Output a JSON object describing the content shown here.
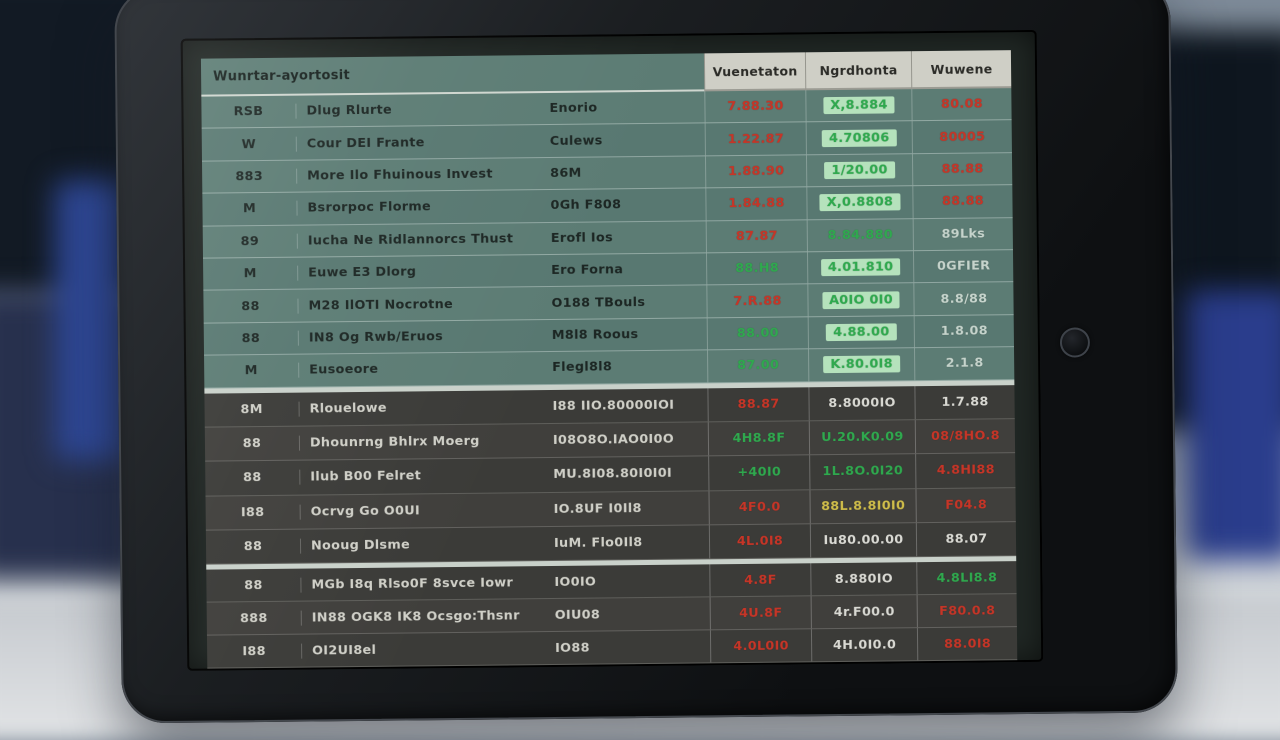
{
  "colors": {
    "red": "#c63527",
    "green": "#2fa94e",
    "light": "#c6d4cc",
    "white": "#d9d9d3",
    "yellow": "#cfbd4a",
    "highlight_bg": "#b5e2bc"
  },
  "table": {
    "header": {
      "title": "Wunrtar-ayortosit",
      "columns": [
        "Vuenetaton",
        "Ngrdhonta",
        "Wuwene"
      ]
    },
    "sections": [
      {
        "style": "teal",
        "rows": [
          {
            "code": "RSB",
            "name": "Dlug Rlurte",
            "symbol": "Enorio",
            "price": {
              "text": "7.88.30",
              "color": "red"
            },
            "change": {
              "text": "X,8.884",
              "color": "green",
              "highlight": true
            },
            "value": {
              "text": "80.08",
              "color": "red"
            }
          },
          {
            "code": "W",
            "name": "Cour DEI Frante",
            "symbol": "Culews",
            "price": {
              "text": "1.22.87",
              "color": "red"
            },
            "change": {
              "text": "4.70806",
              "color": "green",
              "highlight": true
            },
            "value": {
              "text": "80005",
              "color": "red"
            }
          },
          {
            "code": "883",
            "name": "More Ilo Fhuinous Invest",
            "symbol": "86M",
            "price": {
              "text": "1.88.90",
              "color": "red"
            },
            "change": {
              "text": "1/20.00",
              "color": "green",
              "highlight": true
            },
            "value": {
              "text": "88.88",
              "color": "red"
            }
          },
          {
            "code": "M",
            "name": "Bsrorpoc Florme",
            "symbol": "0Gh F808",
            "price": {
              "text": "1.84.88",
              "color": "red"
            },
            "change": {
              "text": "X,0.8808",
              "color": "green",
              "highlight": true
            },
            "value": {
              "text": "88.88",
              "color": "red"
            }
          },
          {
            "code": "89",
            "name": "Iucha Ne Ridlannorcs Thust",
            "symbol": "Erofl Ios",
            "price": {
              "text": "87.87",
              "color": "red"
            },
            "change": {
              "text": "8.84.880",
              "color": "green",
              "highlight": false
            },
            "value": {
              "text": "89Lks",
              "color": "light"
            }
          },
          {
            "code": "M",
            "name": "Euwe E3 Dlorg",
            "symbol": "Ero Forna",
            "price": {
              "text": "88.H8",
              "color": "green"
            },
            "change": {
              "text": "4.01.810",
              "color": "green",
              "highlight": true
            },
            "value": {
              "text": "0GFIER",
              "color": "light"
            }
          },
          {
            "code": "88",
            "name": "M28 IlOTI Nocrotne",
            "symbol": "O188 TBouls",
            "price": {
              "text": "7.R.88",
              "color": "red"
            },
            "change": {
              "text": "A0IO 0I0",
              "color": "green",
              "highlight": true
            },
            "value": {
              "text": "8.8/88",
              "color": "light"
            }
          },
          {
            "code": "88",
            "name": "IN8 Og Rwb/Eruos",
            "symbol": "M8l8 Roous",
            "price": {
              "text": "88.00",
              "color": "green"
            },
            "change": {
              "text": "4.88.00",
              "color": "green",
              "highlight": true
            },
            "value": {
              "text": "1.8.08",
              "color": "light"
            }
          },
          {
            "code": "M",
            "name": "Eusoeore",
            "symbol": "Flegl8l8",
            "price": {
              "text": "87.00",
              "color": "green"
            },
            "change": {
              "text": "K.80.0I8",
              "color": "green",
              "highlight": true
            },
            "value": {
              "text": "2.1.8",
              "color": "light"
            }
          }
        ]
      },
      {
        "style": "dark",
        "rows": [
          {
            "code": "8M",
            "name": "Rlouelowe",
            "symbol": "I88 IIO.80000IOI",
            "price": {
              "text": "88.87",
              "color": "red"
            },
            "change": {
              "text": "8.8000IO",
              "color": "white"
            },
            "value": {
              "text": "1.7.88",
              "color": "white"
            }
          },
          {
            "code": "88",
            "name": "Dhounrng Bhlrx Moerg",
            "symbol": "I08O8O.IAO0I0O",
            "price": {
              "text": "4H8.8F",
              "color": "green"
            },
            "change": {
              "text": "U.20.K0.09",
              "color": "green"
            },
            "value": {
              "text": "08/8HO.8",
              "color": "red"
            }
          },
          {
            "code": "88",
            "name": "Ilub B00 Felret",
            "symbol": "MU.8I08.80I0I0I",
            "price": {
              "text": "+40I0",
              "color": "green"
            },
            "change": {
              "text": "1L.8O.0I20",
              "color": "green"
            },
            "value": {
              "text": "4.8HI88",
              "color": "red"
            }
          },
          {
            "code": "I88",
            "name": "Ocrvg Go O0UI",
            "symbol": "IO.8UF I0Il8",
            "price": {
              "text": "4F0.0",
              "color": "red"
            },
            "change": {
              "text": "88L.8.8I0I0",
              "color": "yellow"
            },
            "value": {
              "text": "F04.8",
              "color": "red"
            }
          },
          {
            "code": "88",
            "name": "Nooug Dlsme",
            "symbol": "IuM. Flo0Il8",
            "price": {
              "text": "4L.0I8",
              "color": "red"
            },
            "change": {
              "text": "Iu80.00.00",
              "color": "white"
            },
            "value": {
              "text": "88.07",
              "color": "white"
            }
          }
        ]
      },
      {
        "style": "dark",
        "rows": [
          {
            "code": "88",
            "name": "MGb I8q Rlso0F 8svce Iowr",
            "symbol": "IO0IO",
            "price": {
              "text": "4.8F",
              "color": "red"
            },
            "change": {
              "text": "8.880IO",
              "color": "white"
            },
            "value": {
              "text": "4.8LI8.8",
              "color": "green"
            }
          },
          {
            "code": "888",
            "name": "IN88 OGK8 IK8 Ocsgo:Thsnr",
            "symbol": "OIU08",
            "price": {
              "text": "4U.8F",
              "color": "red"
            },
            "change": {
              "text": "4r.F00.0",
              "color": "white"
            },
            "value": {
              "text": "F80.0.8",
              "color": "red"
            }
          },
          {
            "code": "I88",
            "name": "OI2UI8el",
            "symbol": "IO88",
            "price": {
              "text": "4.0L0I0",
              "color": "red"
            },
            "change": {
              "text": "4H.0I0.0",
              "color": "white"
            },
            "value": {
              "text": "88.0I8",
              "color": "red"
            }
          }
        ]
      }
    ]
  }
}
